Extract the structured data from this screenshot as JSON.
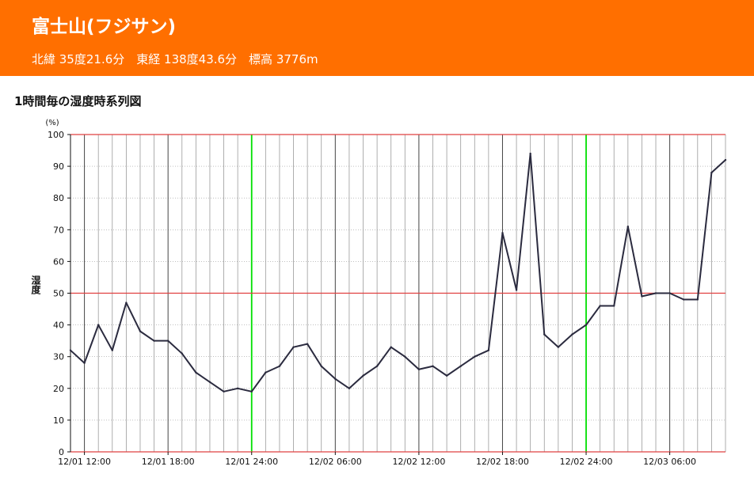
{
  "header": {
    "title": "富士山(フジサン)",
    "coords": "北緯 35度21.6分　東経 138度43.6分　標高 3776m"
  },
  "chart_heading": "1時間毎の湿度時系列図",
  "colors": {
    "header_bg": "#ff6f00",
    "series_line": "#2b2b3f",
    "day_boundary": "#00e000",
    "major_gridline": "#e04040"
  },
  "chart_data": {
    "type": "line",
    "title": "1時間毎の湿度時系列図",
    "ylabel": "湿度",
    "yunit": "(%)",
    "ylim": [
      0,
      100
    ],
    "yticks": [
      0,
      10,
      20,
      30,
      40,
      50,
      60,
      70,
      80,
      90,
      100
    ],
    "xlabels": [
      "12/01 12:00",
      "12/01 18:00",
      "12/01 24:00",
      "12/02 06:00",
      "12/02 12:00",
      "12/02 18:00",
      "12/02 24:00",
      "12/03 06:00"
    ],
    "grid": true,
    "series": [
      {
        "values": [
          32,
          28,
          40,
          32,
          47,
          38,
          35,
          35,
          31,
          25,
          22,
          19,
          20,
          19,
          25,
          27,
          33,
          34,
          27,
          23,
          20,
          24,
          27,
          33,
          30,
          26,
          27,
          24,
          27,
          30,
          32,
          69,
          51,
          94,
          37,
          33,
          37,
          40,
          46,
          46,
          71,
          49,
          50,
          50,
          48,
          48,
          88,
          92
        ]
      }
    ]
  }
}
